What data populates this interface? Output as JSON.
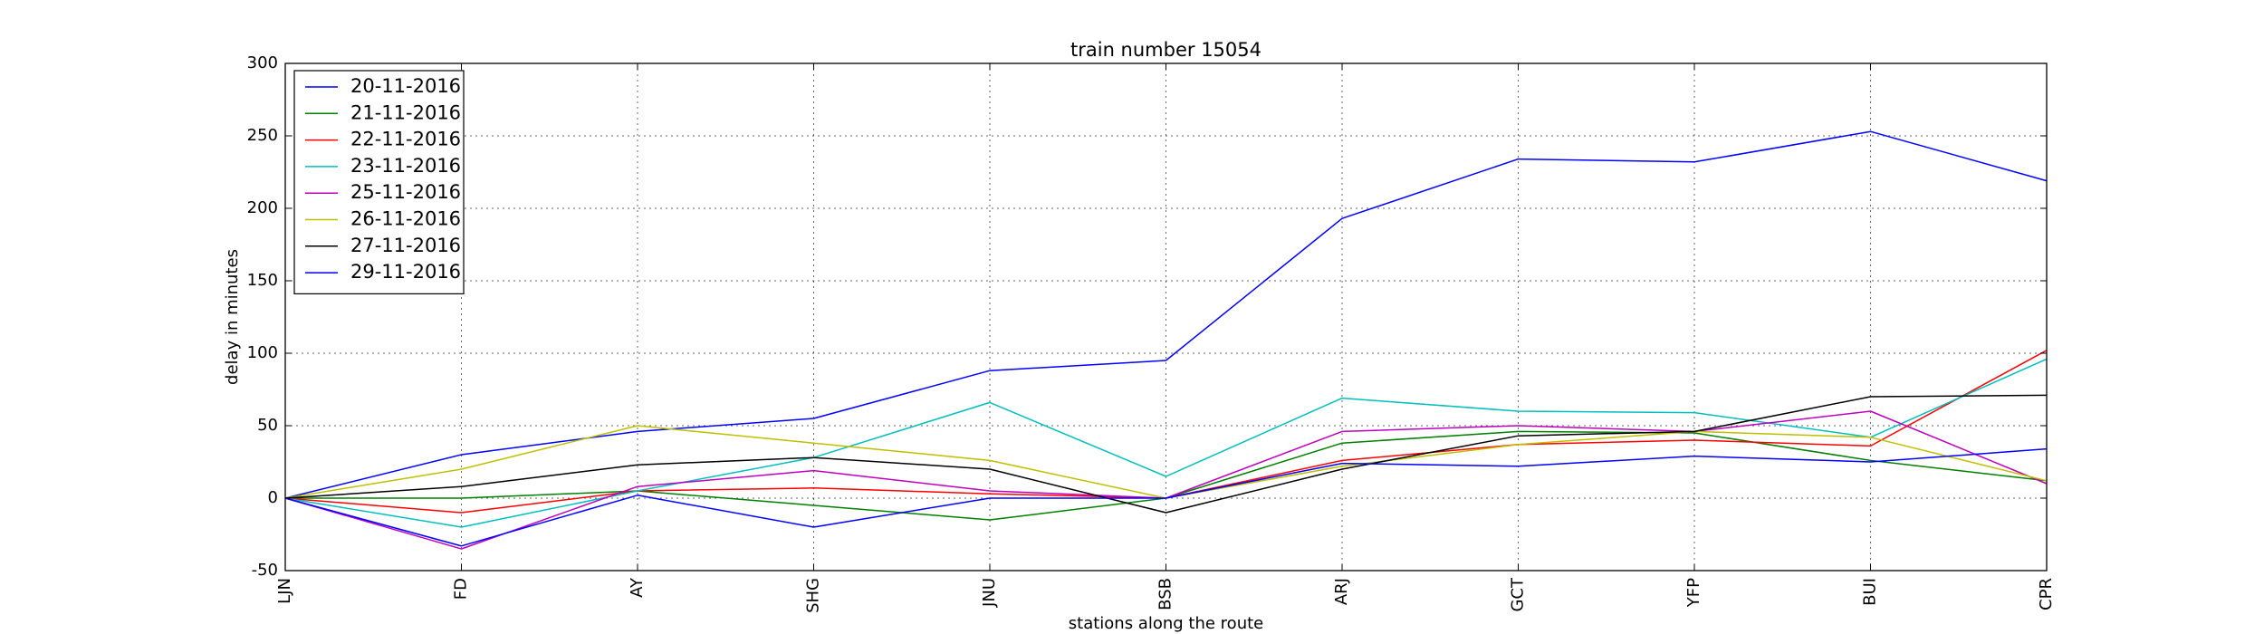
{
  "chart_data": {
    "type": "line",
    "title": "train number 15054",
    "xlabel": "stations along the route",
    "ylabel": "delay in minutes",
    "categories": [
      "LJN",
      "FD",
      "AY",
      "SHG",
      "JNU",
      "BSB",
      "ARJ",
      "GCT",
      "YFP",
      "BUI",
      "CPR"
    ],
    "ylim": [
      -50,
      300
    ],
    "yticks": [
      -50,
      0,
      50,
      100,
      150,
      200,
      250,
      300
    ],
    "grid": true,
    "legend_position": "top-left",
    "series": [
      {
        "name": "20-11-2016",
        "color": "#0000ff",
        "values": [
          0,
          30,
          46,
          55,
          88,
          95,
          193,
          234,
          232,
          253,
          219
        ]
      },
      {
        "name": "21-11-2016",
        "color": "#008000",
        "values": [
          0,
          0,
          5,
          -5,
          -15,
          0,
          38,
          46,
          45,
          26,
          12
        ]
      },
      {
        "name": "22-11-2016",
        "color": "#ff0000",
        "values": [
          0,
          -10,
          5,
          7,
          3,
          0,
          26,
          37,
          40,
          36,
          102
        ]
      },
      {
        "name": "23-11-2016",
        "color": "#00bfbf",
        "values": [
          0,
          -20,
          5,
          28,
          66,
          15,
          69,
          60,
          59,
          42,
          96
        ]
      },
      {
        "name": "25-11-2016",
        "color": "#bf00bf",
        "values": [
          0,
          -35,
          8,
          19,
          5,
          0,
          46,
          50,
          46,
          60,
          10
        ]
      },
      {
        "name": "26-11-2016",
        "color": "#bfbf00",
        "values": [
          0,
          20,
          50,
          38,
          26,
          0,
          22,
          37,
          46,
          42,
          12
        ]
      },
      {
        "name": "27-11-2016",
        "color": "#000000",
        "values": [
          0,
          8,
          23,
          28,
          20,
          -10,
          20,
          43,
          46,
          70,
          71
        ]
      },
      {
        "name": "29-11-2016",
        "color": "#0000ff",
        "values": [
          0,
          -33,
          2,
          -20,
          0,
          0,
          24,
          22,
          29,
          25,
          34
        ]
      }
    ]
  }
}
